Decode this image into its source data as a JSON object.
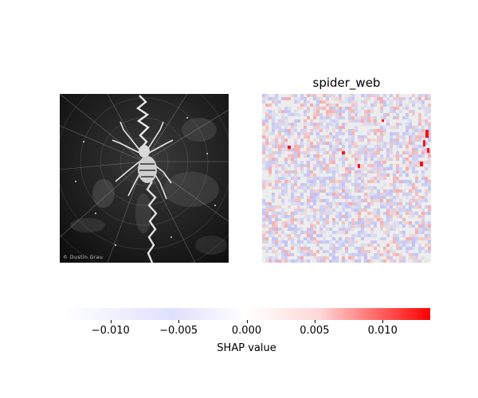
{
  "figure": {
    "panel_title": "spider_web",
    "watermark": "© Dustin Grau",
    "colorbar_label": "SHAP value"
  },
  "chart_data": {
    "type": "heatmap",
    "title": "spider_web",
    "colorbar": {
      "label": "SHAP value",
      "range": [
        -0.0135,
        0.0135
      ],
      "ticks": [
        -0.01,
        -0.005,
        0.0,
        0.005,
        0.01
      ],
      "tick_labels": [
        "−0.010",
        "−0.005",
        "0.000",
        "0.005",
        "0.010"
      ],
      "colormap": [
        "#0000ff",
        "#ffffff",
        "#ff0000"
      ]
    },
    "panels": [
      "input-image",
      "shap-heatmap"
    ]
  }
}
